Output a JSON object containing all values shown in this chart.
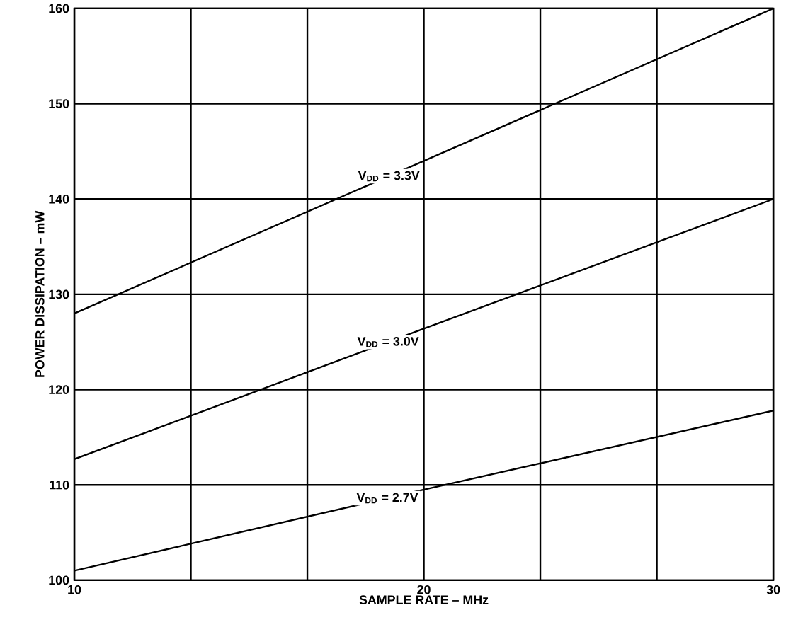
{
  "chart_data": {
    "type": "line",
    "xlabel": "SAMPLE RATE – MHz",
    "ylabel": "POWER DISSIPATION – mW",
    "xlim": [
      10,
      30
    ],
    "ylim": [
      100,
      160
    ],
    "xticks": [
      10,
      {
        "value": 13.333,
        "label": null
      },
      {
        "value": 16.667,
        "label": null
      },
      20,
      {
        "value": 23.333,
        "label": null
      },
      {
        "value": 26.667,
        "label": null
      },
      30
    ],
    "yticks": [
      100,
      110,
      120,
      130,
      140,
      150,
      160
    ],
    "grid": true,
    "legend": false,
    "marker": "none",
    "line_style": "solid",
    "series": [
      {
        "name": "V$_{DD}$ = 3.3V",
        "color": "#000000",
        "x": [
          10,
          20,
          30
        ],
        "values": [
          128,
          144,
          160
        ]
      },
      {
        "name": "V$_{DD}$ = 3.0V",
        "color": "#000000",
        "x": [
          10,
          20,
          30
        ],
        "values": [
          112.7,
          126.4,
          140
        ]
      },
      {
        "name": "V$_{DD}$ = 2.7V",
        "color": "#000000",
        "x": [
          10,
          20,
          30
        ],
        "values": [
          101,
          109.5,
          117.8
        ]
      }
    ]
  }
}
